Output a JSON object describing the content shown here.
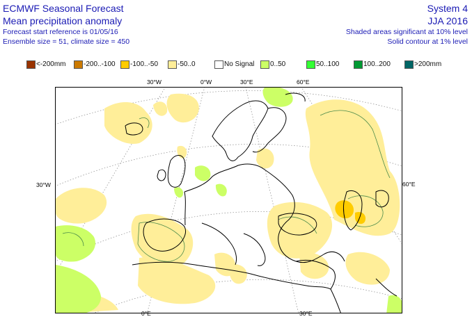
{
  "header": {
    "source": "ECMWF Seasonal Forecast",
    "product": "Mean precipitation anomaly",
    "start_ref": "Forecast start reference is 01/05/16",
    "ensemble": "Ensemble size = 51, climate size = 450",
    "system": "System 4",
    "season": "JJA 2016",
    "note_shaded": "Shaded areas significant at 10% level",
    "note_contour": "Solid contour at 1% level"
  },
  "legend": [
    {
      "label": "<-200mm",
      "color": "#993300"
    },
    {
      "label": "-200..-100",
      "color": "#cc7a00"
    },
    {
      "label": "-100..-50",
      "color": "#ffcc00"
    },
    {
      "label": "-50..0",
      "color": "#ffee99"
    },
    {
      "label": "No Signal",
      "color": "#ffffff"
    },
    {
      "label": "0..50",
      "color": "#ccff66"
    },
    {
      "label": "50..100",
      "color": "#33ff33"
    },
    {
      "label": "100..200",
      "color": "#009933"
    },
    {
      "label": ">200mm",
      "color": "#006666"
    }
  ],
  "axis_labels": {
    "top": [
      "30°W",
      "0°W",
      "30°E",
      "60°E"
    ],
    "bottom": [
      "0°E",
      "30°E"
    ],
    "left": "30°W",
    "right": "60°E"
  }
}
